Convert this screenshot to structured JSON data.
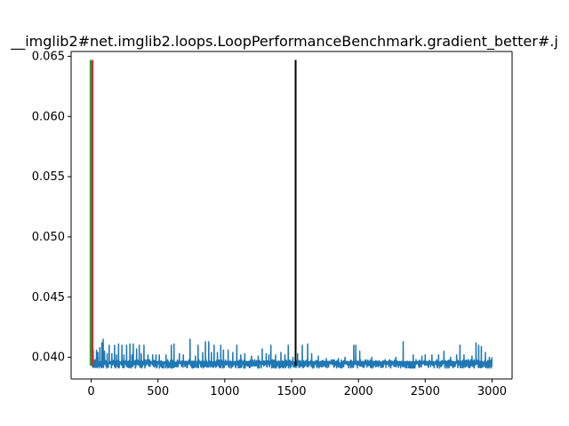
{
  "chart_data": {
    "type": "line",
    "title": "__imglib2#net.imglib2.loops.LoopPerformanceBenchmark.gradient_better#.j",
    "xlabel": "",
    "ylabel": "",
    "xlim": [
      -150,
      3150
    ],
    "ylim": [
      0.0382,
      0.0654
    ],
    "x_ticks": [
      0,
      500,
      1000,
      1500,
      2000,
      2500,
      3000
    ],
    "x_tick_labels": [
      "0",
      "500",
      "1000",
      "1500",
      "2000",
      "2500",
      "3000"
    ],
    "y_ticks": [
      0.04,
      0.045,
      0.05,
      0.055,
      0.06,
      0.065
    ],
    "y_tick_labels": [
      "0.040",
      "0.045",
      "0.050",
      "0.055",
      "0.060",
      "0.065"
    ],
    "grid": false,
    "series": [
      {
        "color": "#1f77b4",
        "points": {
          "count": 3000,
          "baseline": 0.0395,
          "noise_low": 0.0391,
          "noise_high": 0.0398,
          "spikes": [
            [
              0,
              0.0646
            ],
            [
              5,
              0.0646
            ],
            [
              15,
              0.0406
            ],
            [
              30,
              0.0398
            ],
            [
              40,
              0.0406
            ],
            [
              50,
              0.0404
            ],
            [
              65,
              0.0408
            ],
            [
              80,
              0.0412
            ],
            [
              90,
              0.0415
            ],
            [
              100,
              0.0405
            ],
            [
              120,
              0.0403
            ],
            [
              135,
              0.041
            ],
            [
              155,
              0.0403
            ],
            [
              175,
              0.041
            ],
            [
              190,
              0.0402
            ],
            [
              205,
              0.0411
            ],
            [
              230,
              0.041
            ],
            [
              245,
              0.0402
            ],
            [
              265,
              0.041
            ],
            [
              290,
              0.0411
            ],
            [
              305,
              0.0402
            ],
            [
              315,
              0.0411
            ],
            [
              340,
              0.0407
            ],
            [
              360,
              0.041
            ],
            [
              375,
              0.0403
            ],
            [
              395,
              0.041
            ],
            [
              425,
              0.0402
            ],
            [
              460,
              0.0402
            ],
            [
              485,
              0.0402
            ],
            [
              510,
              0.0402
            ],
            [
              560,
              0.0402
            ],
            [
              600,
              0.041
            ],
            [
              620,
              0.0411
            ],
            [
              660,
              0.0403
            ],
            [
              690,
              0.0402
            ],
            [
              740,
              0.0415
            ],
            [
              780,
              0.0401
            ],
            [
              800,
              0.041
            ],
            [
              835,
              0.0404
            ],
            [
              855,
              0.0413
            ],
            [
              880,
              0.0413
            ],
            [
              900,
              0.0404
            ],
            [
              920,
              0.041
            ],
            [
              945,
              0.0404
            ],
            [
              970,
              0.041
            ],
            [
              990,
              0.0406
            ],
            [
              1025,
              0.0406
            ],
            [
              1060,
              0.0404
            ],
            [
              1090,
              0.041
            ],
            [
              1120,
              0.0402
            ],
            [
              1150,
              0.0403
            ],
            [
              1200,
              0.0401
            ],
            [
              1250,
              0.0401
            ],
            [
              1280,
              0.0407
            ],
            [
              1310,
              0.0403
            ],
            [
              1330,
              0.0402
            ],
            [
              1345,
              0.041
            ],
            [
              1380,
              0.0402
            ],
            [
              1420,
              0.0404
            ],
            [
              1450,
              0.0402
            ],
            [
              1475,
              0.041
            ],
            [
              1510,
              0.04
            ],
            [
              1545,
              0.0403
            ],
            [
              1580,
              0.041
            ],
            [
              1620,
              0.0411
            ],
            [
              1650,
              0.0403
            ],
            [
              1700,
              0.0401
            ],
            [
              1760,
              0.0399
            ],
            [
              1800,
              0.0398
            ],
            [
              1850,
              0.0399
            ],
            [
              1900,
              0.04
            ],
            [
              1965,
              0.041
            ],
            [
              1980,
              0.041
            ],
            [
              2010,
              0.0405
            ],
            [
              2100,
              0.04
            ],
            [
              2200,
              0.0398
            ],
            [
              2280,
              0.04
            ],
            [
              2335,
              0.0413
            ],
            [
              2410,
              0.0402
            ],
            [
              2475,
              0.0401
            ],
            [
              2500,
              0.0402
            ],
            [
              2550,
              0.0402
            ],
            [
              2600,
              0.0402
            ],
            [
              2640,
              0.0405
            ],
            [
              2690,
              0.04
            ],
            [
              2735,
              0.0402
            ],
            [
              2760,
              0.041
            ],
            [
              2790,
              0.0402
            ],
            [
              2850,
              0.0401
            ],
            [
              2880,
              0.0412
            ],
            [
              2900,
              0.041
            ],
            [
              2920,
              0.0409
            ],
            [
              2950,
              0.0404
            ],
            [
              2980,
              0.04
            ],
            [
              2999,
              0.04
            ]
          ]
        }
      }
    ],
    "vlines": [
      {
        "x": -5,
        "y0": 0.0393,
        "y1": 0.0647,
        "color": "#2ca02c"
      },
      {
        "x": 10,
        "y0": 0.0393,
        "y1": 0.0647,
        "color": "#d62728"
      },
      {
        "x": 1530,
        "y0": 0.0393,
        "y1": 0.0647,
        "color": "#000000"
      }
    ],
    "colors": {
      "axis": "#000000",
      "background": "#ffffff"
    }
  }
}
